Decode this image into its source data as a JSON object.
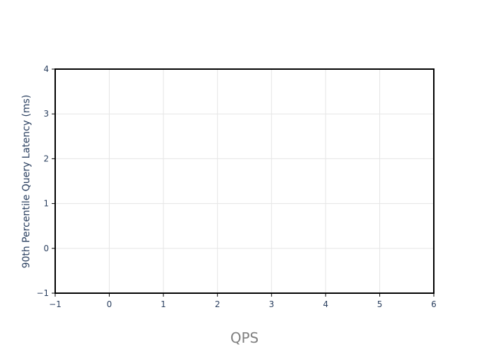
{
  "chart_data": {
    "type": "scatter",
    "title": "",
    "xlabel": "QPS",
    "ylabel": "90th Percentile Query Latency (ms)",
    "xlim": [
      -1,
      6
    ],
    "ylim": [
      -1,
      4
    ],
    "x_ticks": [
      -1,
      0,
      1,
      2,
      3,
      4,
      5,
      6
    ],
    "y_ticks": [
      -1,
      0,
      1,
      2,
      3,
      4
    ],
    "x_tick_labels": [
      "−1",
      "0",
      "1",
      "2",
      "3",
      "4",
      "5",
      "6"
    ],
    "y_tick_labels": [
      "−1",
      "0",
      "1",
      "2",
      "3",
      "4"
    ],
    "grid": true,
    "series": []
  },
  "colors": {
    "grid": "#e5e5e5",
    "frame": "#000000",
    "tick_text": "#2a3f5f",
    "x_title": "#7f7f7f",
    "y_title": "#2a3f5f",
    "background": "#ffffff"
  }
}
